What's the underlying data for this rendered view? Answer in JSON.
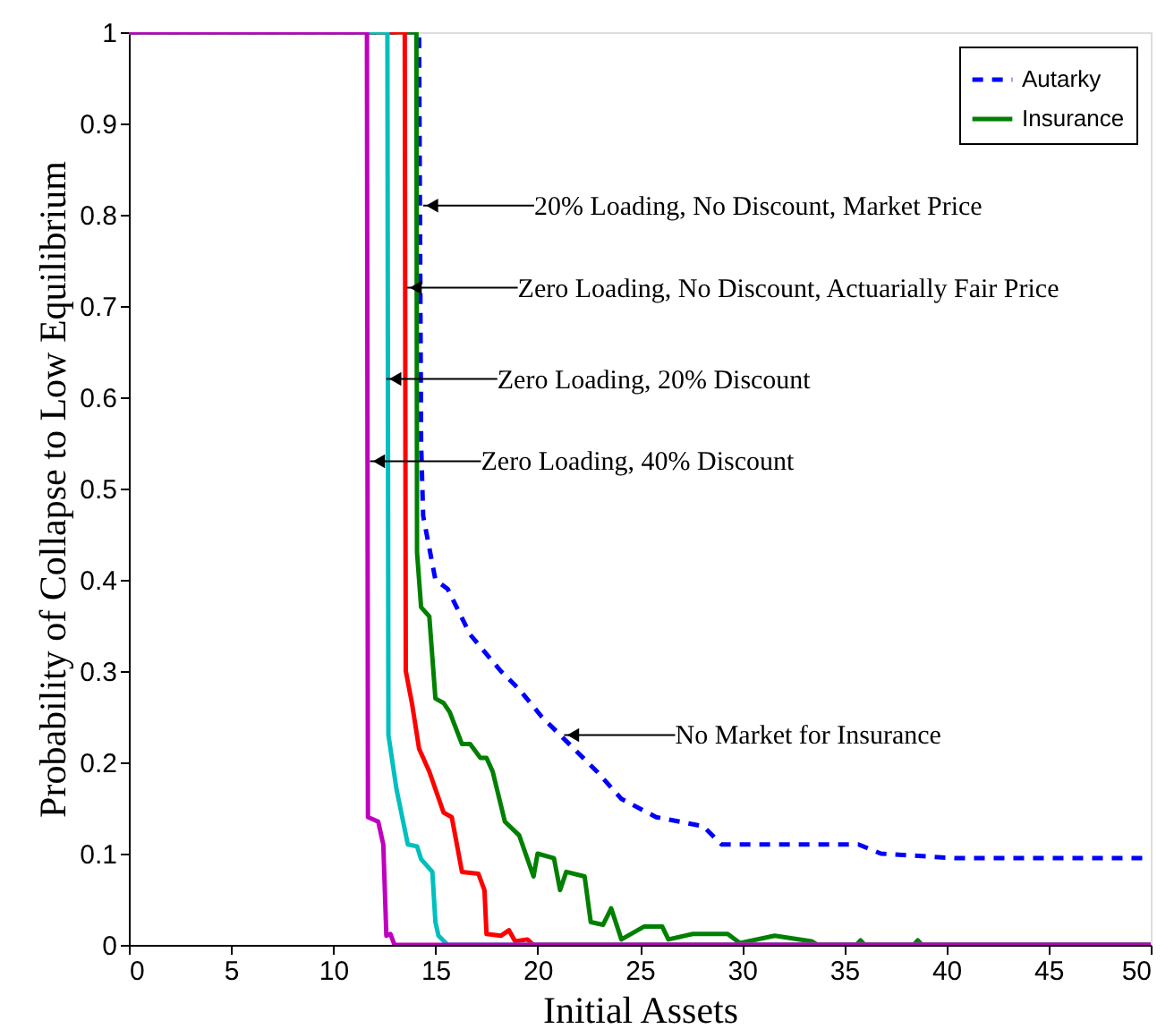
{
  "chart_data": {
    "type": "line",
    "xlabel": "Initial Assets",
    "ylabel": "Probability of Collapse to Low Equilibrium",
    "xlim": [
      0,
      50
    ],
    "xticks": [
      0,
      5,
      10,
      15,
      20,
      25,
      30,
      35,
      40,
      45,
      50
    ],
    "ylim": [
      0,
      1
    ],
    "yticks": [
      0,
      0.1,
      0.2,
      0.3,
      0.4,
      0.5,
      0.6,
      0.7,
      0.8,
      0.9,
      1
    ],
    "grid": false,
    "legend": "top right",
    "marker": "none",
    "series": [
      {
        "name": "Autarky",
        "color": "#0000ff",
        "line_style": "dashed",
        "x": [
          0,
          14.2,
          14.3,
          14.4,
          15.0,
          15.6,
          16.7,
          18.2,
          19.1,
          20.2,
          21.1,
          22.9,
          24.1,
          25.8,
          28.1,
          29.0,
          35.7,
          36.8,
          40.4,
          50
        ],
        "values": [
          1,
          1,
          0.55,
          0.47,
          0.4,
          0.39,
          0.34,
          0.3,
          0.28,
          0.25,
          0.23,
          0.19,
          0.16,
          0.14,
          0.13,
          0.11,
          0.11,
          0.1,
          0.095,
          0.095
        ]
      },
      {
        "name": "Insurance",
        "color": "#008000",
        "line_style": "solid",
        "x": [
          0,
          14.07,
          14.1,
          14.3,
          14.7,
          15.0,
          15.4,
          15.7,
          16.3,
          16.7,
          17.2,
          17.5,
          17.8,
          18.4,
          19.1,
          19.8,
          20.0,
          20.8,
          21.1,
          21.4,
          22.3,
          22.6,
          23.2,
          23.6,
          24.1,
          25.2,
          26.1,
          26.4,
          27.6,
          29.3,
          29.9,
          31.6,
          33.4,
          33.7,
          35.6,
          35.8,
          36.0,
          38.4,
          38.6,
          38.8,
          50
        ],
        "values": [
          1,
          1,
          0.43,
          0.37,
          0.36,
          0.27,
          0.265,
          0.255,
          0.22,
          0.22,
          0.205,
          0.205,
          0.19,
          0.135,
          0.12,
          0.075,
          0.1,
          0.095,
          0.06,
          0.08,
          0.075,
          0.025,
          0.022,
          0.04,
          0.006,
          0.02,
          0.02,
          0.006,
          0.012,
          0.012,
          0.002,
          0.01,
          0.004,
          0,
          0,
          0.005,
          0,
          0,
          0.005,
          0,
          0
        ]
      },
      {
        "color": "#ff0000",
        "line_style": "solid",
        "x": [
          0,
          13.5,
          13.55,
          13.85,
          14.2,
          14.7,
          15.4,
          15.8,
          16.3,
          17.1,
          17.4,
          17.5,
          18.2,
          18.6,
          18.9,
          19.5,
          19.8,
          50
        ],
        "values": [
          1,
          1,
          0.3,
          0.265,
          0.215,
          0.19,
          0.145,
          0.14,
          0.08,
          0.078,
          0.06,
          0.012,
          0.01,
          0.016,
          0.004,
          0.006,
          0,
          0
        ]
      },
      {
        "color": "#00bfbf",
        "line_style": "solid",
        "x": [
          0,
          12.65,
          12.7,
          13.1,
          13.65,
          14.1,
          14.3,
          14.85,
          15.0,
          15.15,
          15.6,
          50
        ],
        "values": [
          1,
          1,
          0.23,
          0.17,
          0.11,
          0.108,
          0.094,
          0.08,
          0.025,
          0.01,
          0,
          0
        ]
      },
      {
        "color": "#bf00bf",
        "line_style": "solid",
        "x": [
          0,
          11.65,
          11.7,
          12.2,
          12.45,
          12.6,
          12.8,
          13.0,
          50
        ],
        "values": [
          1,
          1,
          0.14,
          0.135,
          0.11,
          0.01,
          0.012,
          0,
          0
        ]
      }
    ],
    "annotations": [
      {
        "text": "20% Loading, No Discount, Market Price",
        "x": 14.4,
        "y": 0.81
      },
      {
        "text": "Zero Loading, No Discount, Actuarially Fair Price",
        "x": 13.6,
        "y": 0.72
      },
      {
        "text": "Zero Loading, 20% Discount",
        "x": 12.6,
        "y": 0.62
      },
      {
        "text": "Zero Loading, 40% Discount",
        "x": 11.8,
        "y": 0.53
      },
      {
        "text": "No Market for Insurance",
        "x": 21.3,
        "y": 0.23
      }
    ]
  }
}
